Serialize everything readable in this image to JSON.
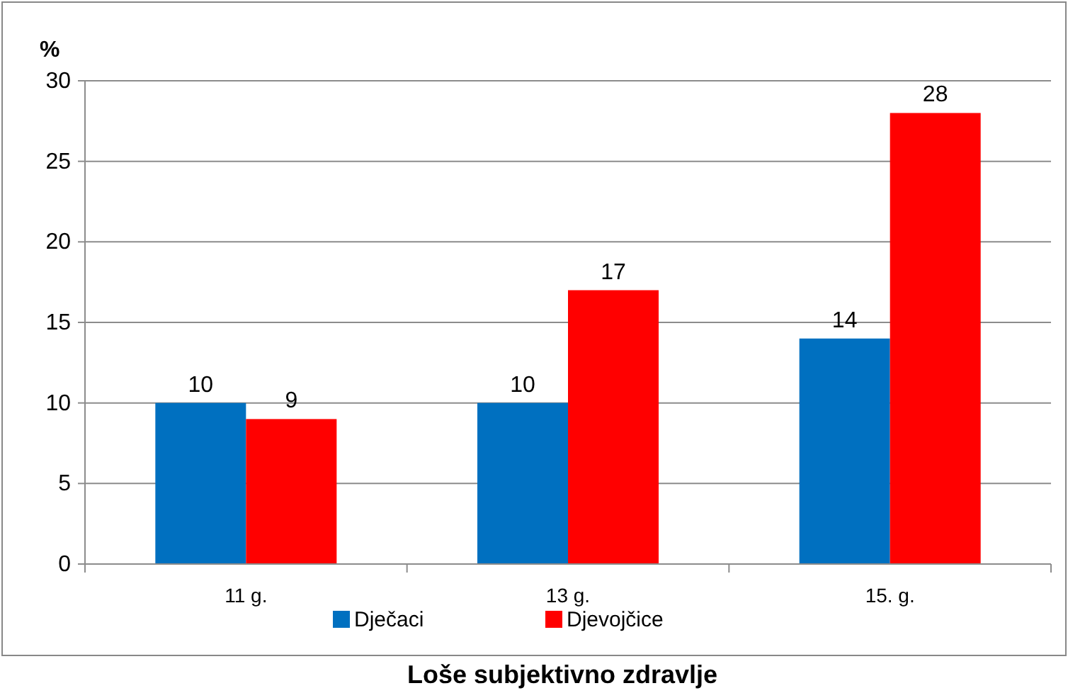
{
  "chart_data": {
    "type": "bar",
    "title": "Loše subjektivno zdravlje",
    "ylabel": "%",
    "categories": [
      "11 g.",
      "13 g.",
      "15. g."
    ],
    "series": [
      {
        "name": "Dječaci",
        "color": "#0070c0",
        "values": [
          10,
          10,
          14
        ]
      },
      {
        "name": "Djevojčice",
        "color": "#ff0000",
        "values": [
          9,
          17,
          28
        ]
      }
    ],
    "ylim": [
      0,
      30
    ],
    "yticks": [
      0,
      5,
      10,
      15,
      20,
      25,
      30
    ],
    "grid": "y",
    "legend": "bottom",
    "data_labels": true
  }
}
